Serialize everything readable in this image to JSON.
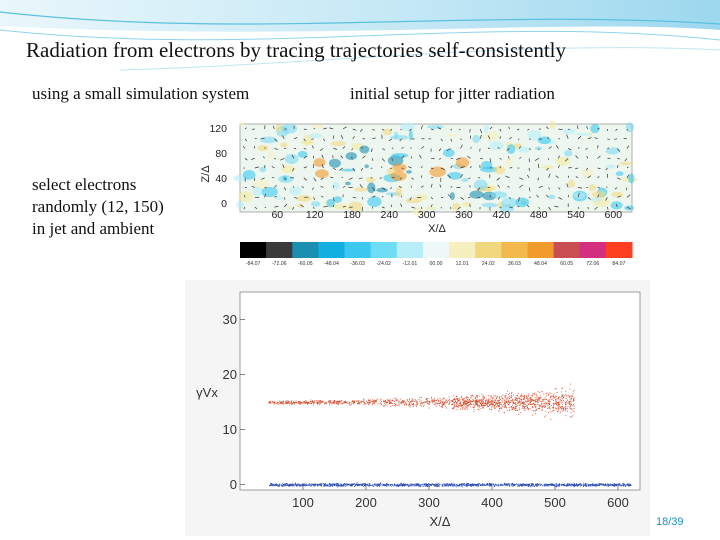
{
  "slide": {
    "title": "Radiation from electrons by tracing trajectories self-consistently",
    "subtitle_left": "using a small simulation system",
    "subtitle_right": "initial setup for jitter radiation",
    "note_lines": [
      "select electrons",
      "randomly (12, 150)",
      "in jet and ambient"
    ],
    "page_number": "18/39",
    "accent_color": "#5bc0e0"
  },
  "chart_data": [
    {
      "type": "heatmap",
      "ylabel": "Z/Δ",
      "xlabel": "X/Δ",
      "yticks": [
        "120",
        "80",
        "40",
        "0"
      ],
      "xticks": [
        "60",
        "120",
        "180",
        "240",
        "300",
        "360",
        "420",
        "480",
        "540",
        "600"
      ],
      "colorbar": {
        "labels": [
          "-84.07",
          "-72.06",
          "-60.05",
          "-48.04",
          "-36.03",
          "-24.02",
          "-12.01",
          "00.00",
          "12.01",
          "24.02",
          "36.03",
          "48.04",
          "60.05",
          "72.06",
          "84.07"
        ],
        "colors": [
          "#000000",
          "#3a3a3a",
          "#1a8fb0",
          "#12b0e0",
          "#3cc8f0",
          "#70dcf5",
          "#b8eef8",
          "#eef8f8",
          "#f6f0c0",
          "#f3d77e",
          "#f4b94c",
          "#f39a2c",
          "#c84e52",
          "#d2307e",
          "#ff4020"
        ]
      }
    },
    {
      "type": "scatter",
      "xlabel": "X/Δ",
      "ylabel": "γVx",
      "x_ticks": [
        "100",
        "200",
        "300",
        "400",
        "500",
        "600"
      ],
      "y_ticks": [
        "30",
        "20",
        "10",
        "0"
      ],
      "xlim": [
        0,
        635
      ],
      "ylim": [
        -1,
        35
      ],
      "series": [
        {
          "name": "jet",
          "color": "#d4492a",
          "x_start": 45,
          "x_end": 530,
          "y_center": 15,
          "spread_start": 0.4,
          "spread_end": 3.2
        },
        {
          "name": "ambient",
          "color": "#2a4bb4",
          "x_start": 45,
          "x_end": 620,
          "y_center": 0,
          "spread_start": 0.35,
          "spread_end": 0.35
        }
      ]
    }
  ]
}
